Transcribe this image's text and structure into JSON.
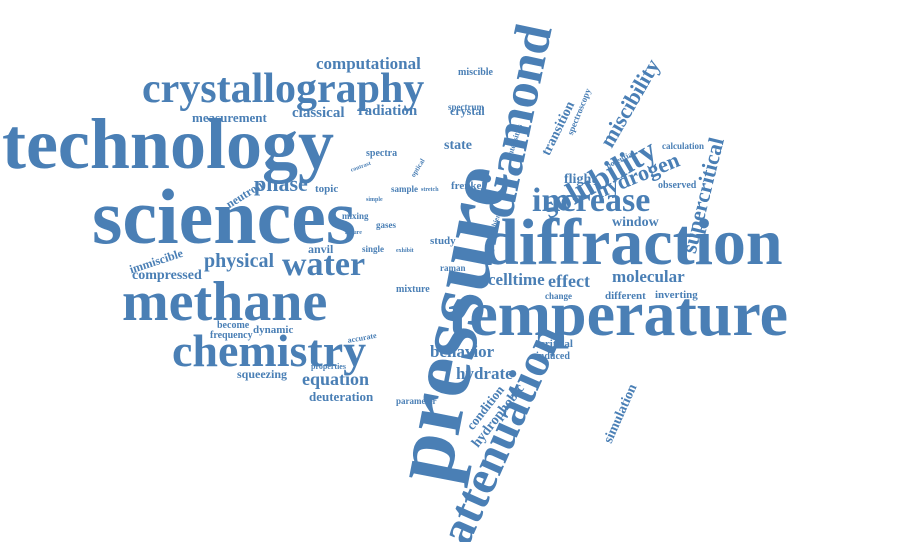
{
  "cloud": {
    "color": "#4a7fb5",
    "words": [
      {
        "text": "pressure",
        "weight": 10
      },
      {
        "text": "technology",
        "weight": 8
      },
      {
        "text": "sciences",
        "weight": 9
      },
      {
        "text": "diffraction",
        "weight": 8
      },
      {
        "text": "temperature",
        "weight": 8
      },
      {
        "text": "methane",
        "weight": 7
      },
      {
        "text": "chemistry",
        "weight": 6
      },
      {
        "text": "crystallography",
        "weight": 6
      },
      {
        "text": "diamond",
        "weight": 6
      },
      {
        "text": "attenuation",
        "weight": 6
      },
      {
        "text": "water",
        "weight": 5
      },
      {
        "text": "increase",
        "weight": 5
      },
      {
        "text": "solubility",
        "weight": 5
      },
      {
        "text": "supercritical",
        "weight": 4
      },
      {
        "text": "miscibility",
        "weight": 4
      },
      {
        "text": "hydrogen",
        "weight": 4
      },
      {
        "text": "physical",
        "weight": 3
      },
      {
        "text": "phase",
        "weight": 3
      },
      {
        "text": "behavior",
        "weight": 3
      },
      {
        "text": "equation",
        "weight": 3
      },
      {
        "text": "effect",
        "weight": 3
      },
      {
        "text": "celltime",
        "weight": 3
      },
      {
        "text": "molecular",
        "weight": 3
      },
      {
        "text": "hydrate",
        "weight": 3
      },
      {
        "text": "computational",
        "weight": 3
      },
      {
        "text": "radiation",
        "weight": 2
      },
      {
        "text": "classical",
        "weight": 2
      },
      {
        "text": "measurement",
        "weight": 2
      },
      {
        "text": "state",
        "weight": 2
      },
      {
        "text": "window",
        "weight": 2
      },
      {
        "text": "flight",
        "weight": 2
      },
      {
        "text": "compressed",
        "weight": 2
      },
      {
        "text": "immiscible",
        "weight": 2
      },
      {
        "text": "neutron",
        "weight": 2
      },
      {
        "text": "simulation",
        "weight": 2
      },
      {
        "text": "hydrophobic",
        "weight": 2
      },
      {
        "text": "condition",
        "weight": 2
      },
      {
        "text": "transition",
        "weight": 2
      },
      {
        "text": "crystal",
        "weight": 2
      },
      {
        "text": "anvil",
        "weight": 2
      },
      {
        "text": "deuteration",
        "weight": 2
      },
      {
        "text": "squeezing",
        "weight": 2
      },
      {
        "text": "dynamic",
        "weight": 1
      },
      {
        "text": "become",
        "weight": 1
      },
      {
        "text": "frequency",
        "weight": 1
      },
      {
        "text": "properties",
        "weight": 1
      },
      {
        "text": "critical",
        "weight": 1
      },
      {
        "text": "induced",
        "weight": 1
      },
      {
        "text": "parameter",
        "weight": 1
      },
      {
        "text": "different",
        "weight": 1
      },
      {
        "text": "inverting",
        "weight": 1
      },
      {
        "text": "change",
        "weight": 1
      },
      {
        "text": "observed",
        "weight": 1
      },
      {
        "text": "calculation",
        "weight": 1
      },
      {
        "text": "potential",
        "weight": 1
      },
      {
        "text": "spectroscopy",
        "weight": 1
      },
      {
        "text": "miscible",
        "weight": 1
      },
      {
        "text": "spectrum",
        "weight": 1
      },
      {
        "text": "intensities",
        "weight": 1
      },
      {
        "text": "spectra",
        "weight": 1
      },
      {
        "text": "topic",
        "weight": 1
      },
      {
        "text": "sample",
        "weight": 1
      },
      {
        "text": "frenkel",
        "weight": 1
      },
      {
        "text": "mixing",
        "weight": 1
      },
      {
        "text": "single",
        "weight": 1
      },
      {
        "text": "study",
        "weight": 1
      },
      {
        "text": "gases",
        "weight": 1
      },
      {
        "text": "mixture",
        "weight": 1
      },
      {
        "text": "raman",
        "weight": 1
      },
      {
        "text": "accurate",
        "weight": 1
      },
      {
        "text": "optical",
        "weight": 1
      },
      {
        "text": "simple",
        "weight": 1
      },
      {
        "text": "contrast",
        "weight": 1
      },
      {
        "text": "stretch",
        "weight": 1
      },
      {
        "text": "ambient",
        "weight": 1
      },
      {
        "text": "nature",
        "weight": 1
      },
      {
        "text": "exhibit",
        "weight": 1
      }
    ]
  }
}
